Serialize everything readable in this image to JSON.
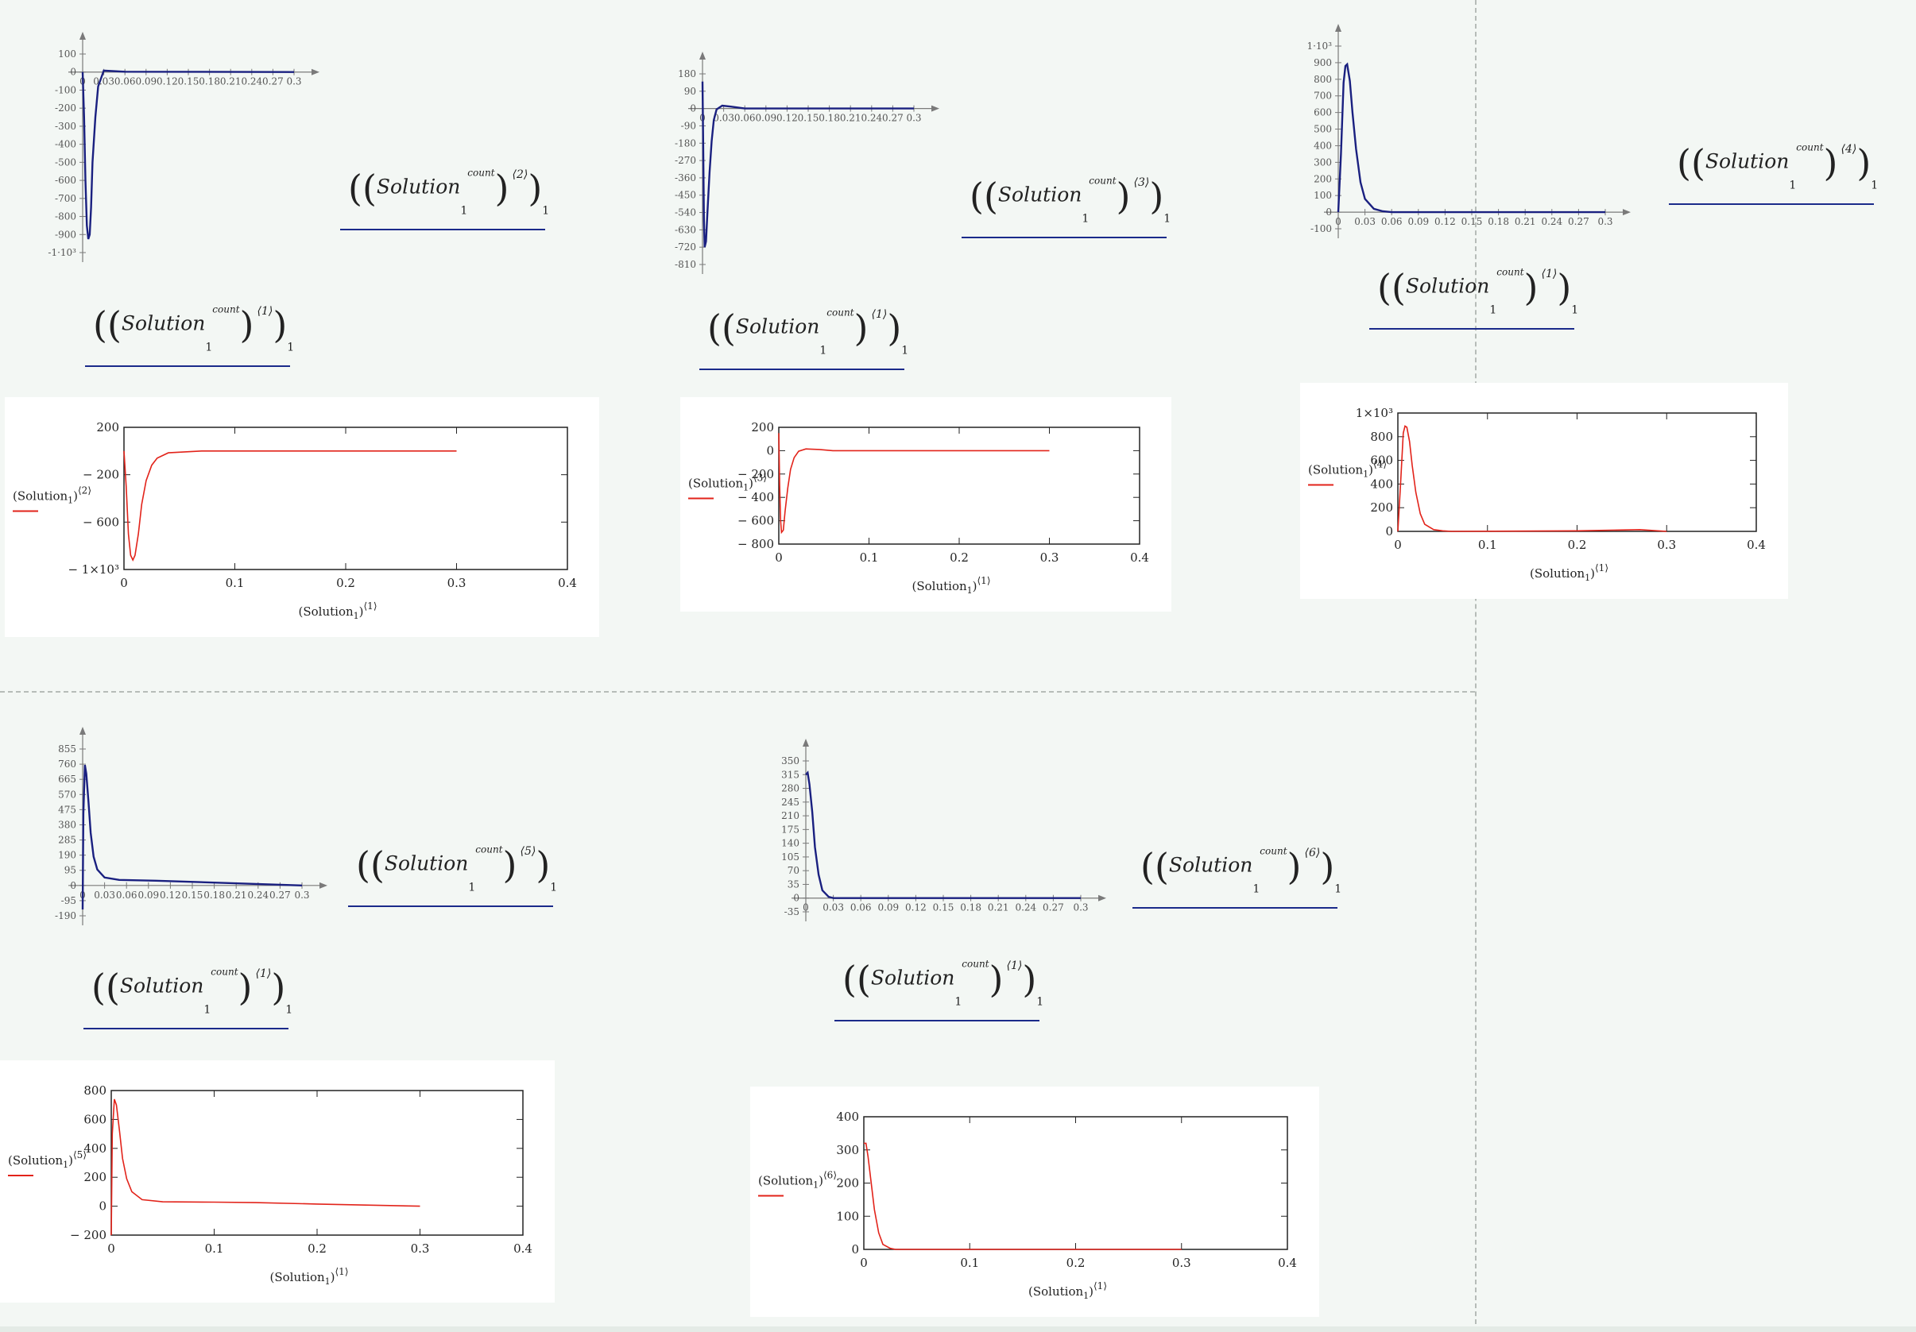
{
  "app": {
    "name": "Mathcad"
  },
  "colors": {
    "background": "#f3f7f4",
    "quickplot_trace": "#1a2080",
    "xyplot_trace": "#e2231a",
    "rule": "#1a2a8a",
    "axis": "#7a7a7a"
  },
  "expr": {
    "name": "Solution",
    "index": "1",
    "over": "count",
    "col_x": "⟨1⟩",
    "col_2": "⟨2⟩",
    "col_3": "⟨3⟩",
    "col_4": "⟨4⟩",
    "col_5": "⟨5⟩",
    "col_6": "⟨6⟩"
  },
  "quick_plots": [
    {
      "name": "quick-plot-col2",
      "y_label": "(Solution₁ count)⟨2⟩",
      "x_label": "(Solution₁ count)⟨1⟩",
      "x_ticks": [
        "0",
        "0.03",
        "0.06",
        "0.09",
        "0.12",
        "0.15",
        "0.18",
        "0.21",
        "0.24",
        "0.27",
        "0.3"
      ],
      "y_ticks": [
        "100",
        "0",
        "-100",
        "-200",
        "-300",
        "-400",
        "-500",
        "-600",
        "-700",
        "-800",
        "-900",
        "-1·10³"
      ],
      "x": [
        0,
        0.002,
        0.004,
        0.006,
        0.008,
        0.01,
        0.012,
        0.014,
        0.018,
        0.022,
        0.03,
        0.06,
        0.3
      ],
      "y": [
        0,
        -250,
        -600,
        -850,
        -925,
        -900,
        -750,
        -500,
        -250,
        -80,
        8,
        2,
        0
      ]
    },
    {
      "name": "quick-plot-col3",
      "y_label": "(Solution₁ count)⟨3⟩",
      "x_label": "(Solution₁ count)⟨1⟩",
      "x_ticks": [
        "0",
        "0.03",
        "0.06",
        "0.09",
        "0.12",
        "0.15",
        "0.18",
        "0.21",
        "0.24",
        "0.27",
        "0.3"
      ],
      "y_ticks": [
        "180",
        "90",
        "0",
        "-90",
        "-180",
        "-270",
        "-360",
        "-450",
        "-540",
        "-630",
        "-720",
        "-810"
      ],
      "x": [
        0,
        0.001,
        0.002,
        0.003,
        0.005,
        0.007,
        0.01,
        0.013,
        0.016,
        0.02,
        0.028,
        0.04,
        0.06,
        0.3
      ],
      "y": [
        140,
        -200,
        -580,
        -720,
        -690,
        -540,
        -330,
        -170,
        -60,
        -5,
        15,
        10,
        0,
        0
      ]
    },
    {
      "name": "quick-plot-col4",
      "y_label": "(Solution₁ count)⟨4⟩",
      "x_label": "(Solution₁ count)⟨1⟩",
      "x_ticks": [
        "0",
        "0.03",
        "0.06",
        "0.09",
        "0.12",
        "0.15",
        "0.18",
        "0.21",
        "0.24",
        "0.27",
        "0.3"
      ],
      "y_ticks": [
        "1·10³",
        "900",
        "800",
        "700",
        "600",
        "500",
        "400",
        "300",
        "200",
        "100",
        "0",
        "-100"
      ],
      "x": [
        0,
        0.003,
        0.006,
        0.008,
        0.01,
        0.013,
        0.016,
        0.02,
        0.025,
        0.03,
        0.04,
        0.05,
        0.06,
        0.3
      ],
      "y": [
        0,
        350,
        780,
        880,
        890,
        790,
        600,
        380,
        180,
        80,
        20,
        5,
        0,
        0
      ]
    },
    {
      "name": "quick-plot-col5",
      "y_label": "(Solution₁ count)⟨5⟩",
      "x_label": "(Solution₁ count)⟨1⟩",
      "x_ticks": [
        "0",
        "0.03",
        "0.06",
        "0.09",
        "0.12",
        "0.15",
        "0.18",
        "0.21",
        "0.24",
        "0.27",
        "0.3"
      ],
      "y_ticks": [
        "855",
        "760",
        "665",
        "570",
        "475",
        "380",
        "285",
        "190",
        "95",
        "0",
        "-95",
        "-190"
      ],
      "x": [
        0,
        0.001,
        0.003,
        0.005,
        0.008,
        0.011,
        0.015,
        0.02,
        0.03,
        0.05,
        0.1,
        0.2,
        0.3
      ],
      "y": [
        -150,
        450,
        755,
        700,
        520,
        330,
        180,
        100,
        50,
        35,
        30,
        15,
        0
      ]
    },
    {
      "name": "quick-plot-col6",
      "y_label": "(Solution₁ count)⟨6⟩",
      "x_label": "(Solution₁ count)⟨1⟩",
      "x_ticks": [
        "0",
        "0.03",
        "0.06",
        "0.09",
        "0.12",
        "0.15",
        "0.18",
        "0.21",
        "0.24",
        "0.27",
        "0.3"
      ],
      "y_ticks": [
        "350",
        "315",
        "280",
        "245",
        "210",
        "175",
        "140",
        "105",
        "70",
        "35",
        "0",
        "-35"
      ],
      "x": [
        0,
        0.002,
        0.004,
        0.007,
        0.01,
        0.014,
        0.018,
        0.025,
        0.03,
        0.3
      ],
      "y": [
        315,
        320,
        290,
        220,
        130,
        60,
        20,
        3,
        0,
        0
      ]
    }
  ],
  "xy_plots": [
    {
      "name": "xy-plot-col2",
      "y_label_base": "Solution",
      "y_label_sub": "1",
      "y_label_col": "⟨2⟩",
      "x_label_base": "Solution",
      "x_label_sub": "1",
      "x_label_col": "⟨1⟩",
      "x_ticks": [
        "0",
        "0.1",
        "0.2",
        "0.3",
        "0.4"
      ],
      "y_ticks": [
        "200",
        "− 200",
        "− 600",
        "− 1×10³"
      ],
      "y_tick_values": [
        200,
        -200,
        -600,
        -1000
      ],
      "x": [
        0,
        0.002,
        0.004,
        0.006,
        0.008,
        0.01,
        0.013,
        0.016,
        0.02,
        0.025,
        0.03,
        0.04,
        0.07,
        0.3
      ],
      "y": [
        0,
        -300,
        -700,
        -880,
        -920,
        -880,
        -700,
        -450,
        -250,
        -120,
        -60,
        -15,
        0,
        0
      ],
      "xlim": [
        0,
        0.4
      ],
      "ylim": [
        -1000,
        200
      ]
    },
    {
      "name": "xy-plot-col3",
      "y_label_base": "Solution",
      "y_label_sub": "1",
      "y_label_col": "⟨3⟩",
      "x_label_base": "Solution",
      "x_label_sub": "1",
      "x_label_col": "⟨1⟩",
      "x_ticks": [
        "0",
        "0.1",
        "0.2",
        "0.3",
        "0.4"
      ],
      "y_ticks": [
        "200",
        "0",
        "− 200",
        "− 400",
        "− 600",
        "− 800"
      ],
      "y_tick_values": [
        200,
        0,
        -200,
        -400,
        -600,
        -800
      ],
      "x": [
        0,
        0.001,
        0.002,
        0.003,
        0.005,
        0.007,
        0.01,
        0.013,
        0.017,
        0.022,
        0.03,
        0.045,
        0.06,
        0.3
      ],
      "y": [
        150,
        -300,
        -600,
        -700,
        -680,
        -520,
        -320,
        -160,
        -60,
        -5,
        15,
        10,
        0,
        0
      ],
      "xlim": [
        0,
        0.4
      ],
      "ylim": [
        -800,
        200
      ]
    },
    {
      "name": "xy-plot-col4",
      "y_label_base": "Solution",
      "y_label_sub": "1",
      "y_label_col": "⟨4⟩",
      "x_label_base": "Solution",
      "x_label_sub": "1",
      "x_label_col": "⟨1⟩",
      "x_ticks": [
        "0",
        "0.1",
        "0.2",
        "0.3",
        "0.4"
      ],
      "y_ticks": [
        "1×10³",
        "800",
        "600",
        "400",
        "200",
        "0"
      ],
      "y_tick_values": [
        1000,
        800,
        600,
        400,
        200,
        0
      ],
      "x": [
        0,
        0.003,
        0.006,
        0.008,
        0.01,
        0.013,
        0.016,
        0.02,
        0.025,
        0.03,
        0.04,
        0.05,
        0.06,
        0.2,
        0.27,
        0.3
      ],
      "y": [
        0,
        400,
        830,
        890,
        880,
        760,
        560,
        330,
        150,
        60,
        15,
        5,
        0,
        5,
        15,
        0
      ],
      "xlim": [
        0,
        0.4
      ],
      "ylim": [
        0,
        1000
      ]
    },
    {
      "name": "xy-plot-col5",
      "y_label_base": "Solution",
      "y_label_sub": "1",
      "y_label_col": "⟨5⟩",
      "x_label_base": "Solution",
      "x_label_sub": "1",
      "x_label_col": "⟨1⟩",
      "x_ticks": [
        "0",
        "0.1",
        "0.2",
        "0.3",
        "0.4"
      ],
      "y_ticks": [
        "800",
        "600",
        "400",
        "200",
        "0",
        "− 200"
      ],
      "y_tick_values": [
        800,
        600,
        400,
        200,
        0,
        -200
      ],
      "x": [
        0,
        0.001,
        0.003,
        0.005,
        0.008,
        0.011,
        0.015,
        0.02,
        0.03,
        0.05,
        0.1,
        0.14,
        0.2,
        0.3
      ],
      "y": [
        -200,
        500,
        740,
        700,
        520,
        330,
        190,
        100,
        45,
        30,
        28,
        25,
        15,
        0
      ],
      "xlim": [
        0,
        0.4
      ],
      "ylim": [
        -200,
        800
      ]
    },
    {
      "name": "xy-plot-col6",
      "y_label_base": "Solution",
      "y_label_sub": "1",
      "y_label_col": "⟨6⟩",
      "x_label_base": "Solution",
      "x_label_sub": "1",
      "x_label_col": "⟨1⟩",
      "x_ticks": [
        "0",
        "0.1",
        "0.2",
        "0.3",
        "0.4"
      ],
      "y_ticks": [
        "400",
        "300",
        "200",
        "100",
        "0"
      ],
      "y_tick_values": [
        400,
        300,
        200,
        100,
        0
      ],
      "x": [
        0,
        0.002,
        0.004,
        0.007,
        0.01,
        0.014,
        0.018,
        0.025,
        0.03,
        0.3
      ],
      "y": [
        320,
        320,
        280,
        200,
        120,
        50,
        15,
        3,
        0,
        0
      ],
      "xlim": [
        0,
        0.4
      ],
      "ylim": [
        0,
        400
      ]
    }
  ]
}
